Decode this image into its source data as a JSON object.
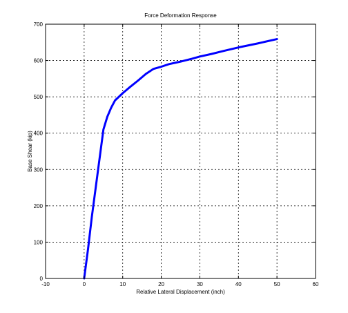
{
  "chart_data": {
    "type": "line",
    "title": "Force Deformation Response",
    "xlabel": "Relative Lateral Displacement (inch)",
    "ylabel": "Base Shear (kip)",
    "xlim": [
      -10,
      60
    ],
    "ylim": [
      0,
      700
    ],
    "xticks": [
      "-10",
      "0",
      "10",
      "20",
      "30",
      "40",
      "50",
      "60"
    ],
    "yticks": [
      "0",
      "100",
      "200",
      "300",
      "400",
      "500",
      "600",
      "700"
    ],
    "grid": true,
    "line_color": "#0000ff",
    "series": [
      {
        "x": [
          0,
          1,
          2,
          3,
          4,
          5,
          6,
          7,
          8,
          9,
          10,
          12,
          14,
          16,
          18,
          20,
          22,
          25,
          28,
          30,
          33,
          36,
          40,
          45,
          50
        ],
        "y": [
          0,
          80,
          170,
          250,
          330,
          410,
          445,
          470,
          490,
          500,
          510,
          528,
          545,
          563,
          577,
          583,
          590,
          597,
          605,
          611,
          618,
          626,
          636,
          647,
          659
        ]
      }
    ]
  }
}
